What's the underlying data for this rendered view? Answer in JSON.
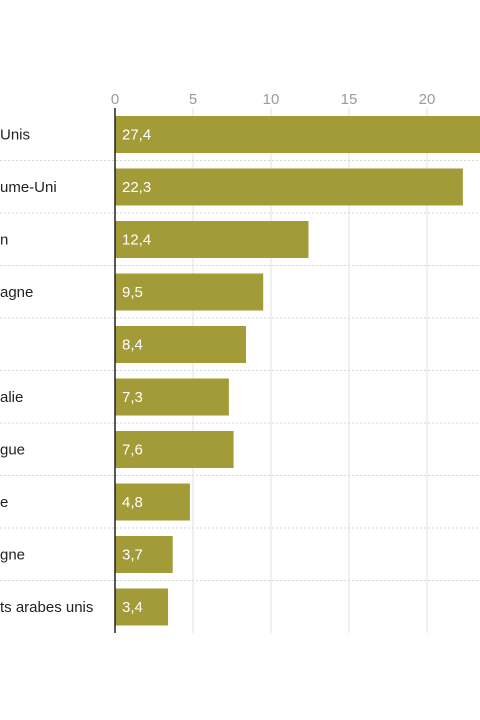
{
  "chart_data": {
    "type": "bar",
    "orientation": "horizontal",
    "categories": [
      "Unis",
      "ume-Uni",
      "n",
      "agne",
      "",
      "alie",
      "gue",
      "e",
      "gne",
      "ts arabes unis"
    ],
    "values": [
      27.4,
      22.3,
      12.4,
      9.5,
      8.4,
      7.3,
      7.6,
      4.8,
      3.7,
      3.4
    ],
    "value_labels": [
      "27,4",
      "22,3",
      "12,4",
      "9,5",
      "8,4",
      "7,3",
      "7,6",
      "4,8",
      "3,7",
      "3,4"
    ],
    "x_ticks": [
      0,
      5,
      10,
      15,
      20
    ],
    "x_tick_labels": [
      "0",
      "5",
      "10",
      "15",
      "20"
    ],
    "xlim": [
      0,
      23.8
    ],
    "grid": true,
    "colors": {
      "bar": "#a39a38",
      "grid": "#e2e2e2",
      "row_separator": "#d6d6d6",
      "axis": "#222222"
    }
  }
}
